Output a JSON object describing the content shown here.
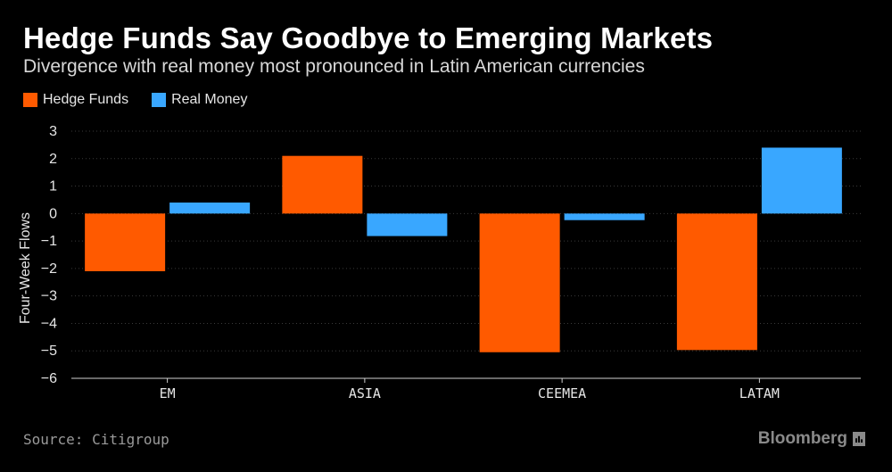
{
  "header": {
    "title": "Hedge Funds Say Goodbye to Emerging Markets",
    "subtitle": "Divergence with real money most pronounced in Latin American currencies"
  },
  "footer": {
    "source": "Source: Citigroup",
    "brand": "Bloomberg",
    "brand_icon": "bloomberg-bar-icon"
  },
  "colors": {
    "hedge_funds": "#ff5a00",
    "real_money": "#39a7ff",
    "background": "#000000",
    "grid": "#3a3a3a"
  },
  "chart_data": {
    "type": "bar",
    "categories": [
      "EM",
      "ASIA",
      "CEEMEA",
      "LATAM"
    ],
    "series": [
      {
        "name": "Hedge Funds",
        "values": [
          -2.1,
          2.1,
          -5.05,
          -4.97
        ]
      },
      {
        "name": "Real Money",
        "values": [
          0.4,
          -0.82,
          -0.24,
          2.4
        ]
      }
    ],
    "ylabel": "Four-Week Flows",
    "xlabel": "",
    "ylim": [
      -6,
      3
    ],
    "yticks": [
      3,
      2,
      1,
      0,
      -1,
      -2,
      -3,
      -4,
      -5,
      -6
    ],
    "grid": true,
    "legend_position": "top-left"
  }
}
